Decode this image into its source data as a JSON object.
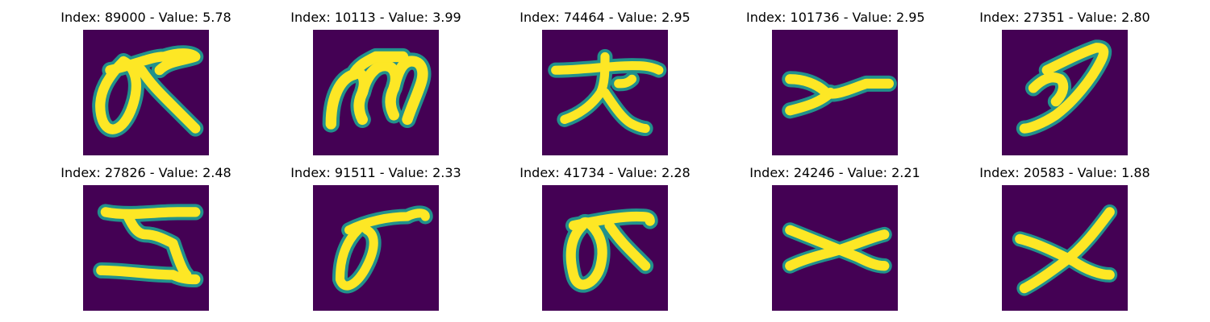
{
  "figure": {
    "colormap": "viridis",
    "background_color": "#440154",
    "ink_color": "#fde725",
    "edge_color": "#21918c",
    "panels": [
      {
        "title": "Index: 89000 - Value: 5.78"
      },
      {
        "title": "Index: 10113 - Value: 3.99"
      },
      {
        "title": "Index: 74464 - Value: 2.95"
      },
      {
        "title": "Index: 101736 - Value: 2.95"
      },
      {
        "title": "Index: 27351 - Value: 2.80"
      },
      {
        "title": "Index: 27826 - Value: 2.48"
      },
      {
        "title": "Index: 91511 - Value: 2.33"
      },
      {
        "title": "Index: 41734 - Value: 2.28"
      },
      {
        "title": "Index: 24246 - Value: 2.21"
      },
      {
        "title": "Index: 20583 - Value: 1.88"
      }
    ]
  }
}
